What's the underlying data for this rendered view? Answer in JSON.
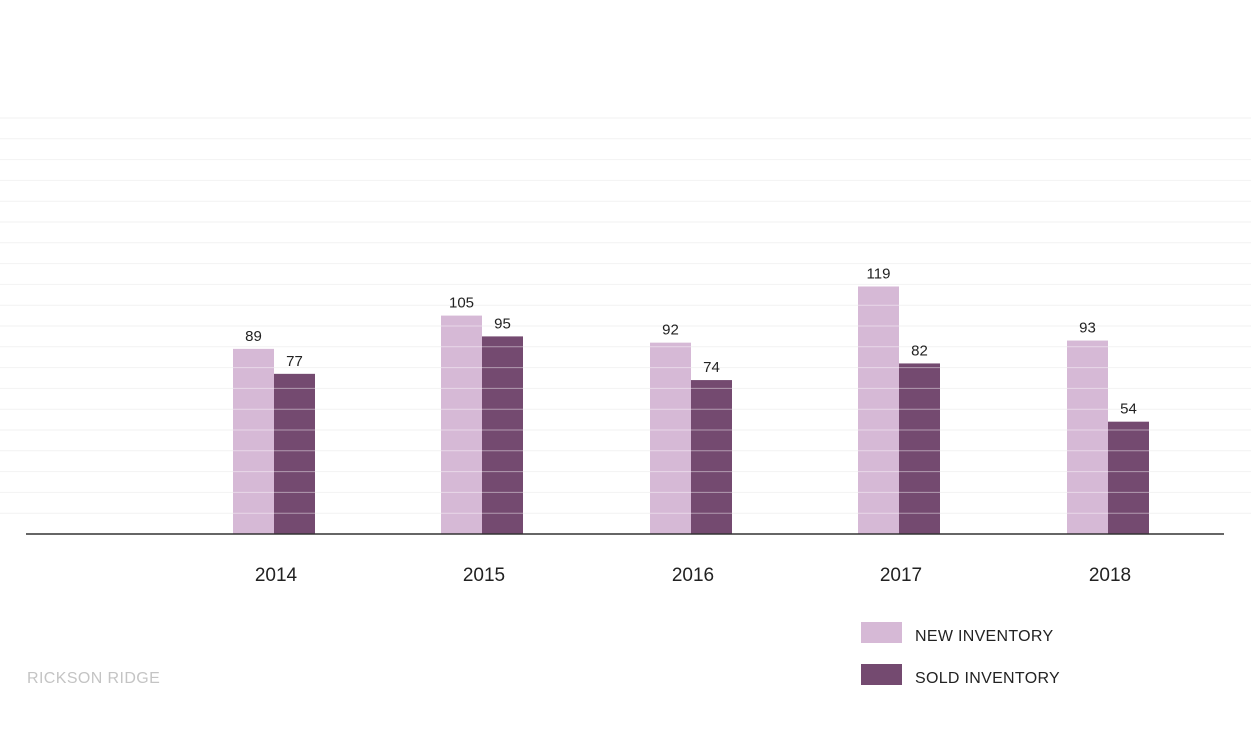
{
  "chart_data": {
    "type": "bar",
    "categories": [
      "2014",
      "2015",
      "2016",
      "2017",
      "2018"
    ],
    "series": [
      {
        "name": "NEW INVENTORY",
        "values": [
          89,
          105,
          92,
          119,
          93
        ],
        "color": "#d6b9d6"
      },
      {
        "name": "SOLD INVENTORY",
        "values": [
          77,
          95,
          74,
          82,
          54
        ],
        "color": "#744a70"
      }
    ],
    "title": "",
    "xlabel": "",
    "ylabel": "",
    "ylim": [
      0,
      200
    ],
    "grid": true,
    "legend_position": "bottom-right",
    "gridline_color": "#f2f2f2",
    "axis_color": "#333333"
  },
  "legend": {
    "items": [
      {
        "label": "NEW INVENTORY",
        "color": "#d6b9d6"
      },
      {
        "label": "SOLD INVENTORY",
        "color": "#744a70"
      }
    ]
  },
  "source_label": "RICKSON RIDGE"
}
